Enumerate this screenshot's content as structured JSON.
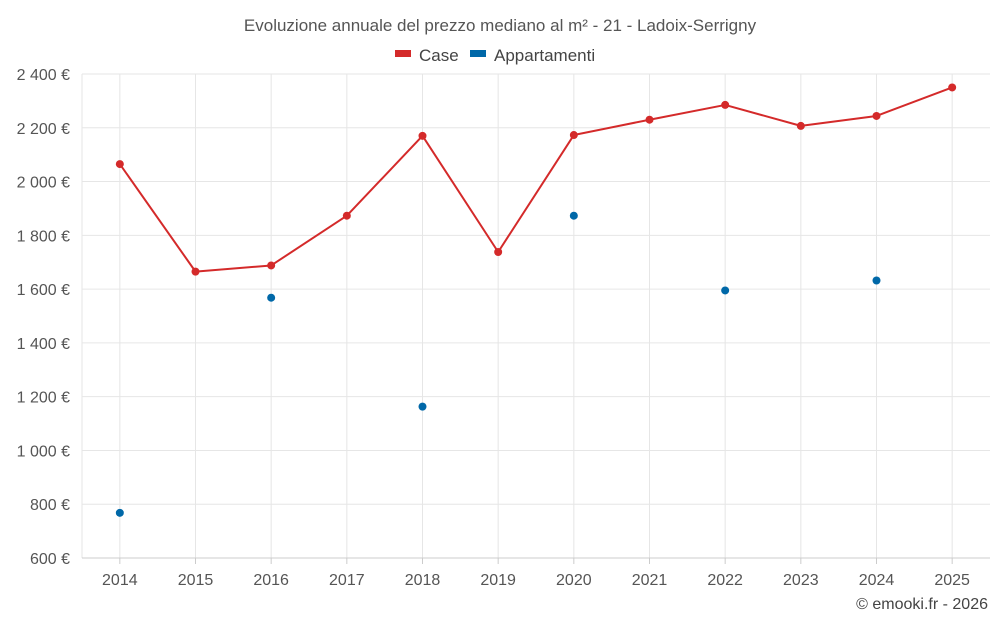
{
  "chart_data": {
    "type": "line",
    "title": "Evoluzione annuale del prezzo mediano al m² - 21 - Ladoix-Serrigny",
    "categories": [
      "2014",
      "2015",
      "2016",
      "2017",
      "2018",
      "2019",
      "2020",
      "2021",
      "2022",
      "2023",
      "2024",
      "2025"
    ],
    "ylim": [
      600,
      2400
    ],
    "yticks": [
      600,
      800,
      1000,
      1200,
      1400,
      1600,
      1800,
      2000,
      2200,
      2400
    ],
    "ytick_labels": [
      "600 €",
      "800 €",
      "1 000 €",
      "1 200 €",
      "1 400 €",
      "1 600 €",
      "1 800 €",
      "2 000 €",
      "2 200 €",
      "2 400 €"
    ],
    "grid": true,
    "legend_position": "top-center",
    "series": [
      {
        "name": "Case",
        "color": "#d42a2a",
        "style": "line-markers",
        "values": [
          2065,
          1665,
          1688,
          1873,
          2170,
          1738,
          2173,
          2230,
          2285,
          2207,
          2244,
          2350
        ]
      },
      {
        "name": "Appartamenti",
        "color": "#0068a8",
        "style": "markers",
        "values": [
          768,
          null,
          1568,
          null,
          1163,
          null,
          1873,
          null,
          1595,
          null,
          1632,
          null
        ]
      }
    ],
    "credit": "© emooki.fr - 2026"
  }
}
